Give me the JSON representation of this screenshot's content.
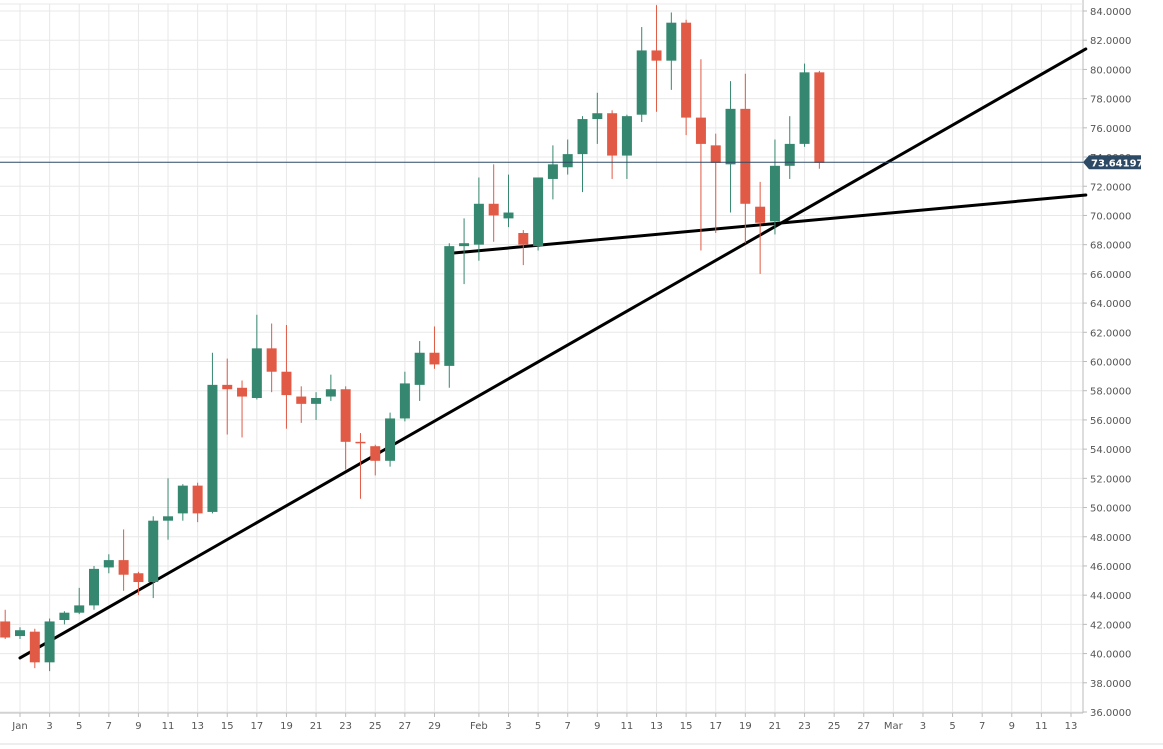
{
  "chart_data": {
    "type": "candlestick",
    "y_axis": {
      "min": 36,
      "max": 84,
      "step": 2,
      "tick_labels_decimals": 4
    },
    "current_price": {
      "value": 73.641972,
      "label": "73.641972"
    },
    "x_tick_labels": [
      {
        "date": "2021-01-01",
        "label": "Jan"
      },
      {
        "date": "2021-01-03",
        "label": "3"
      },
      {
        "date": "2021-01-05",
        "label": "5"
      },
      {
        "date": "2021-01-07",
        "label": "7"
      },
      {
        "date": "2021-01-09",
        "label": "9"
      },
      {
        "date": "2021-01-11",
        "label": "11"
      },
      {
        "date": "2021-01-13",
        "label": "13"
      },
      {
        "date": "2021-01-15",
        "label": "15"
      },
      {
        "date": "2021-01-17",
        "label": "17"
      },
      {
        "date": "2021-01-19",
        "label": "19"
      },
      {
        "date": "2021-01-21",
        "label": "21"
      },
      {
        "date": "2021-01-23",
        "label": "23"
      },
      {
        "date": "2021-01-25",
        "label": "25"
      },
      {
        "date": "2021-01-27",
        "label": "27"
      },
      {
        "date": "2021-01-29",
        "label": "29"
      },
      {
        "date": "2021-02-01",
        "label": "Feb"
      },
      {
        "date": "2021-02-03",
        "label": "3"
      },
      {
        "date": "2021-02-05",
        "label": "5"
      },
      {
        "date": "2021-02-07",
        "label": "7"
      },
      {
        "date": "2021-02-09",
        "label": "9"
      },
      {
        "date": "2021-02-11",
        "label": "11"
      },
      {
        "date": "2021-02-13",
        "label": "13"
      },
      {
        "date": "2021-02-15",
        "label": "15"
      },
      {
        "date": "2021-02-17",
        "label": "17"
      },
      {
        "date": "2021-02-19",
        "label": "19"
      },
      {
        "date": "2021-02-21",
        "label": "21"
      },
      {
        "date": "2021-02-23",
        "label": "23"
      },
      {
        "date": "2021-02-25",
        "label": "25"
      },
      {
        "date": "2021-02-27",
        "label": "27"
      },
      {
        "date": "2021-03-01",
        "label": "Mar"
      },
      {
        "date": "2021-03-03",
        "label": "3"
      },
      {
        "date": "2021-03-05",
        "label": "5"
      },
      {
        "date": "2021-03-07",
        "label": "7"
      },
      {
        "date": "2021-03-09",
        "label": "9"
      },
      {
        "date": "2021-03-11",
        "label": "11"
      },
      {
        "date": "2021-03-13",
        "label": "13"
      }
    ],
    "candles": [
      {
        "date": "2020-12-31",
        "open": 42.2,
        "high": 43.0,
        "low": 41.0,
        "close": 41.1
      },
      {
        "date": "2021-01-01",
        "open": 41.2,
        "high": 41.8,
        "low": 41.0,
        "close": 41.6
      },
      {
        "date": "2021-01-02",
        "open": 41.5,
        "high": 41.7,
        "low": 39.0,
        "close": 39.4
      },
      {
        "date": "2021-01-03",
        "open": 39.4,
        "high": 42.4,
        "low": 38.8,
        "close": 42.2
      },
      {
        "date": "2021-01-04",
        "open": 42.3,
        "high": 42.9,
        "low": 42.0,
        "close": 42.8
      },
      {
        "date": "2021-01-05",
        "open": 42.8,
        "high": 44.5,
        "low": 42.7,
        "close": 43.3
      },
      {
        "date": "2021-01-06",
        "open": 43.3,
        "high": 46.0,
        "low": 43.0,
        "close": 45.8
      },
      {
        "date": "2021-01-07",
        "open": 45.9,
        "high": 46.8,
        "low": 45.5,
        "close": 46.4
      },
      {
        "date": "2021-01-08",
        "open": 46.4,
        "high": 48.5,
        "low": 44.3,
        "close": 45.4
      },
      {
        "date": "2021-01-09",
        "open": 45.5,
        "high": 45.6,
        "low": 44.0,
        "close": 44.9
      },
      {
        "date": "2021-01-10",
        "open": 44.9,
        "high": 49.4,
        "low": 43.8,
        "close": 49.1
      },
      {
        "date": "2021-01-11",
        "open": 49.1,
        "high": 52.0,
        "low": 47.8,
        "close": 49.4
      },
      {
        "date": "2021-01-12",
        "open": 49.6,
        "high": 51.6,
        "low": 49.1,
        "close": 51.5
      },
      {
        "date": "2021-01-13",
        "open": 51.5,
        "high": 51.7,
        "low": 49.0,
        "close": 49.6
      },
      {
        "date": "2021-01-14",
        "open": 49.7,
        "high": 60.6,
        "low": 49.6,
        "close": 58.4
      },
      {
        "date": "2021-01-15",
        "open": 58.4,
        "high": 60.2,
        "low": 55.0,
        "close": 58.1
      },
      {
        "date": "2021-01-16",
        "open": 58.2,
        "high": 58.7,
        "low": 54.8,
        "close": 57.6
      },
      {
        "date": "2021-01-17",
        "open": 57.5,
        "high": 63.2,
        "low": 57.4,
        "close": 60.9
      },
      {
        "date": "2021-01-18",
        "open": 60.9,
        "high": 62.6,
        "low": 57.9,
        "close": 59.3
      },
      {
        "date": "2021-01-19",
        "open": 59.3,
        "high": 62.5,
        "low": 55.4,
        "close": 57.7
      },
      {
        "date": "2021-01-20",
        "open": 57.6,
        "high": 58.3,
        "low": 55.8,
        "close": 57.1
      },
      {
        "date": "2021-01-21",
        "open": 57.1,
        "high": 57.9,
        "low": 56.0,
        "close": 57.5
      },
      {
        "date": "2021-01-22",
        "open": 57.6,
        "high": 59.1,
        "low": 57.3,
        "close": 58.1
      },
      {
        "date": "2021-01-23",
        "open": 58.1,
        "high": 58.3,
        "low": 52.6,
        "close": 54.5
      },
      {
        "date": "2021-01-24",
        "open": 54.5,
        "high": 55.1,
        "low": 50.6,
        "close": 54.4
      },
      {
        "date": "2021-01-25",
        "open": 54.2,
        "high": 54.3,
        "low": 52.2,
        "close": 53.2
      },
      {
        "date": "2021-01-26",
        "open": 53.2,
        "high": 56.5,
        "low": 52.8,
        "close": 56.1
      },
      {
        "date": "2021-01-27",
        "open": 56.1,
        "high": 59.3,
        "low": 55.9,
        "close": 58.5
      },
      {
        "date": "2021-01-28",
        "open": 58.4,
        "high": 61.4,
        "low": 57.3,
        "close": 60.6
      },
      {
        "date": "2021-01-29",
        "open": 60.6,
        "high": 62.4,
        "low": 59.5,
        "close": 59.8
      },
      {
        "date": "2021-01-30",
        "open": 59.7,
        "high": 68.1,
        "low": 58.2,
        "close": 67.9
      },
      {
        "date": "2021-01-31",
        "open": 67.9,
        "high": 69.8,
        "low": 65.3,
        "close": 68.1
      },
      {
        "date": "2021-02-01",
        "open": 68.0,
        "high": 72.6,
        "low": 66.9,
        "close": 70.8
      },
      {
        "date": "2021-02-02",
        "open": 70.8,
        "high": 73.5,
        "low": 68.2,
        "close": 70.0
      },
      {
        "date": "2021-02-03",
        "open": 69.8,
        "high": 72.8,
        "low": 69.2,
        "close": 70.2
      },
      {
        "date": "2021-02-04",
        "open": 68.8,
        "high": 69.0,
        "low": 66.6,
        "close": 68.0
      },
      {
        "date": "2021-02-05",
        "open": 67.9,
        "high": 72.6,
        "low": 67.6,
        "close": 72.6
      },
      {
        "date": "2021-02-06",
        "open": 72.5,
        "high": 74.8,
        "low": 71.1,
        "close": 73.5
      },
      {
        "date": "2021-02-07",
        "open": 73.3,
        "high": 75.2,
        "low": 72.8,
        "close": 74.2
      },
      {
        "date": "2021-02-08",
        "open": 74.2,
        "high": 76.8,
        "low": 71.6,
        "close": 76.6
      },
      {
        "date": "2021-02-09",
        "open": 76.6,
        "high": 78.4,
        "low": 74.9,
        "close": 77.0
      },
      {
        "date": "2021-02-10",
        "open": 77.0,
        "high": 77.2,
        "low": 72.5,
        "close": 74.1
      },
      {
        "date": "2021-02-11",
        "open": 74.1,
        "high": 76.9,
        "low": 72.5,
        "close": 76.8
      },
      {
        "date": "2021-02-12",
        "open": 76.9,
        "high": 82.9,
        "low": 76.4,
        "close": 81.3
      },
      {
        "date": "2021-02-13",
        "open": 81.3,
        "high": 84.4,
        "low": 77.1,
        "close": 80.6
      },
      {
        "date": "2021-02-14",
        "open": 80.6,
        "high": 83.9,
        "low": 78.6,
        "close": 83.2
      },
      {
        "date": "2021-02-15",
        "open": 83.2,
        "high": 83.4,
        "low": 75.5,
        "close": 76.7
      },
      {
        "date": "2021-02-16",
        "open": 76.7,
        "high": 80.7,
        "low": 67.6,
        "close": 74.9
      },
      {
        "date": "2021-02-17",
        "open": 74.8,
        "high": 75.6,
        "low": 68.8,
        "close": 73.6
      },
      {
        "date": "2021-02-18",
        "open": 73.5,
        "high": 79.2,
        "low": 70.2,
        "close": 77.3
      },
      {
        "date": "2021-02-19",
        "open": 77.3,
        "high": 79.7,
        "low": 68.1,
        "close": 70.8
      },
      {
        "date": "2021-02-20",
        "open": 70.6,
        "high": 72.3,
        "low": 66.0,
        "close": 69.5
      },
      {
        "date": "2021-02-21",
        "open": 69.6,
        "high": 75.2,
        "low": 68.7,
        "close": 73.4
      },
      {
        "date": "2021-02-22",
        "open": 73.4,
        "high": 76.8,
        "low": 72.5,
        "close": 74.9
      },
      {
        "date": "2021-02-23",
        "open": 74.9,
        "high": 80.4,
        "low": 74.7,
        "close": 79.8
      },
      {
        "date": "2021-02-24",
        "open": 79.8,
        "high": 79.9,
        "low": 73.2,
        "close": 73.6
      }
    ],
    "trendlines": [
      {
        "from": {
          "date": "2021-01-01",
          "value": 39.7
        },
        "to": {
          "date": "2021-03-14",
          "value": 81.4
        }
      },
      {
        "from": {
          "date": "2021-01-30",
          "value": 67.4
        },
        "to": {
          "date": "2021-03-14",
          "value": 71.4
        }
      }
    ],
    "colors": {
      "up": "#36876f",
      "down": "#e05a45",
      "grid": "#e8e8e8",
      "axis": "#bbbbbb",
      "trendline": "#000000",
      "price_line": "#2c4a66",
      "price_tag": "#2c4a66"
    }
  }
}
